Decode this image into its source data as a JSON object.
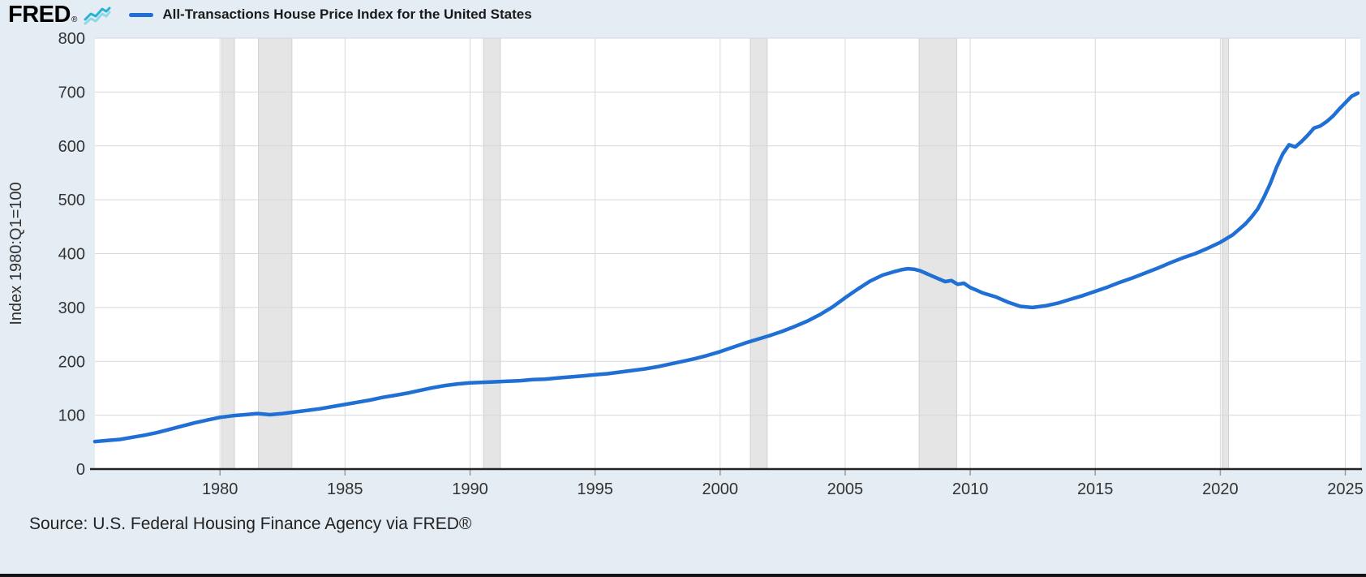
{
  "header": {
    "logo_text": "FRED",
    "logo_registered": "®",
    "series_label": "All-Transactions House Price Index for the United States"
  },
  "footer": {
    "source": "Source: U.S. Federal Housing Finance Agency via FRED®"
  },
  "chart_data": {
    "type": "line",
    "title": "All-Transactions House Price Index for the United States",
    "xlabel": "",
    "ylabel": "Index 1980:Q1=100",
    "xlim": [
      1975,
      2025.6
    ],
    "ylim": [
      0,
      800
    ],
    "x_ticks": [
      1980,
      1985,
      1990,
      1995,
      2000,
      2005,
      2010,
      2015,
      2020,
      2025
    ],
    "y_ticks": [
      0,
      100,
      200,
      300,
      400,
      500,
      600,
      700,
      800
    ],
    "grid": true,
    "legend_position": "top",
    "line_color": "#1f6fd4",
    "grid_color": "#d8d8d8",
    "axis_color": "#222222",
    "recession_band_color": "#e5e5e5",
    "recessions": [
      [
        1980.08,
        1980.58
      ],
      [
        1981.54,
        1982.88
      ],
      [
        1990.54,
        1991.21
      ],
      [
        2001.21,
        2001.88
      ],
      [
        2007.96,
        2009.46
      ],
      [
        2020.08,
        2020.33
      ]
    ],
    "series": [
      {
        "name": "All-Transactions House Price Index for the United States",
        "x": [
          1975,
          1975.5,
          1976,
          1976.5,
          1977,
          1977.5,
          1978,
          1978.5,
          1979,
          1979.5,
          1980,
          1980.5,
          1981,
          1981.5,
          1982,
          1982.5,
          1983,
          1983.5,
          1984,
          1984.5,
          1985,
          1985.5,
          1986,
          1986.5,
          1987,
          1987.5,
          1988,
          1988.5,
          1989,
          1989.5,
          1990,
          1990.5,
          1991,
          1991.5,
          1992,
          1992.5,
          1993,
          1993.5,
          1994,
          1994.5,
          1995,
          1995.5,
          1996,
          1996.5,
          1997,
          1997.5,
          1998,
          1998.5,
          1999,
          1999.5,
          2000,
          2000.5,
          2001,
          2001.5,
          2002,
          2002.5,
          2003,
          2003.5,
          2004,
          2004.5,
          2005,
          2005.5,
          2006,
          2006.5,
          2007,
          2007.25,
          2007.5,
          2007.75,
          2008,
          2008.5,
          2009,
          2009.25,
          2009.5,
          2009.75,
          2010,
          2010.25,
          2010.5,
          2011,
          2011.5,
          2012,
          2012.5,
          2013,
          2013.5,
          2014,
          2014.5,
          2015,
          2015.5,
          2016,
          2016.5,
          2017,
          2017.5,
          2018,
          2018.5,
          2019,
          2019.5,
          2020,
          2020.5,
          2021,
          2021.25,
          2021.5,
          2021.75,
          2022,
          2022.25,
          2022.5,
          2022.75,
          2023,
          2023.25,
          2023.5,
          2023.75,
          2024,
          2024.25,
          2024.5,
          2024.75,
          2025,
          2025.25,
          2025.5
        ],
        "y": [
          51,
          53,
          55,
          59,
          63,
          68,
          74,
          80,
          86,
          91,
          96,
          99,
          101,
          103,
          101,
          103,
          106,
          109,
          112,
          116,
          120,
          124,
          128,
          133,
          137,
          141,
          146,
          151,
          155,
          158,
          160,
          161,
          162,
          163,
          164,
          166,
          167,
          169,
          171,
          173,
          175,
          177,
          180,
          183,
          186,
          190,
          195,
          200,
          205,
          211,
          218,
          226,
          234,
          241,
          248,
          256,
          265,
          275,
          287,
          301,
          318,
          334,
          349,
          360,
          367,
          370,
          372,
          371,
          368,
          358,
          348,
          350,
          343,
          345,
          337,
          332,
          327,
          320,
          310,
          302,
          300,
          303,
          308,
          315,
          322,
          330,
          338,
          347,
          355,
          364,
          373,
          383,
          392,
          400,
          410,
          421,
          435,
          455,
          468,
          483,
          505,
          530,
          560,
          585,
          602,
          598,
          608,
          620,
          633,
          637,
          645,
          655,
          668,
          680,
          692,
          698
        ]
      }
    ]
  }
}
